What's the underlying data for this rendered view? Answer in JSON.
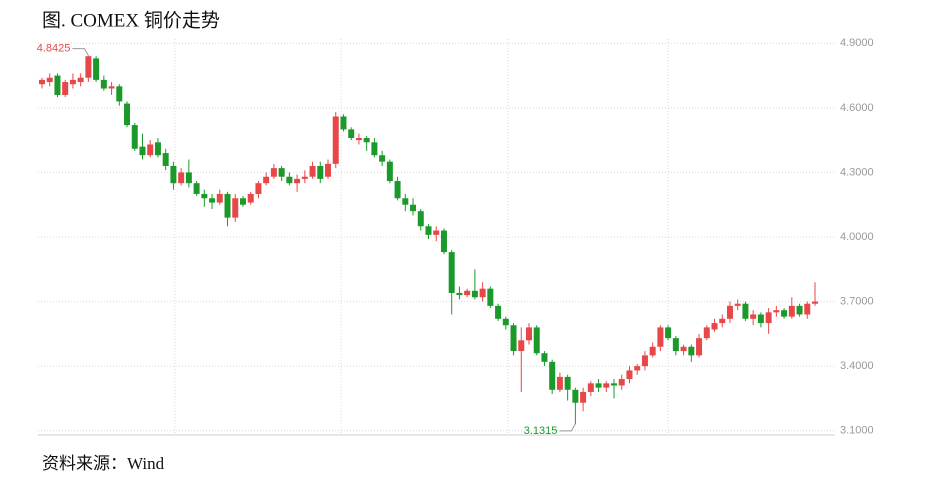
{
  "title": "图. COMEX 铜价走势",
  "source": "资料来源：Wind",
  "chart_data": {
    "type": "candlestick",
    "up_color": "#e8474a",
    "down_color": "#1b9a2b",
    "grid": true,
    "ylim": [
      3.08,
      4.92
    ],
    "yticks": [
      {
        "value": 3.1,
        "label": "3.1000"
      },
      {
        "value": 3.4,
        "label": "3.4000"
      },
      {
        "value": 3.7,
        "label": "3.7000"
      },
      {
        "value": 4.0,
        "label": "4.0000"
      },
      {
        "value": 4.3,
        "label": "4.3000"
      },
      {
        "value": 4.6,
        "label": "4.6000"
      },
      {
        "value": 4.9,
        "label": "4.9000"
      }
    ],
    "annotations": [
      {
        "text": "4.8425",
        "index": 6,
        "color": "#e8474a"
      },
      {
        "text": "3.1315",
        "index": 69,
        "color": "#1b9a2b"
      }
    ],
    "open": [
      4.71,
      4.72,
      4.75,
      4.66,
      4.71,
      4.72,
      4.74,
      4.83,
      4.73,
      4.69,
      4.7,
      4.62,
      4.52,
      4.42,
      4.38,
      4.44,
      4.39,
      4.33,
      4.25,
      4.3,
      4.25,
      4.2,
      4.18,
      4.16,
      4.2,
      4.09,
      4.18,
      4.16,
      4.2,
      4.25,
      4.28,
      4.32,
      4.28,
      4.25,
      4.27,
      4.28,
      4.33,
      4.28,
      4.34,
      4.56,
      4.5,
      4.45,
      4.46,
      4.44,
      4.38,
      4.35,
      4.26,
      4.18,
      4.15,
      4.12,
      4.05,
      4.01,
      4.03,
      3.93,
      3.74,
      3.73,
      3.75,
      3.72,
      3.76,
      3.68,
      3.62,
      3.59,
      3.47,
      3.52,
      3.58,
      3.46,
      3.42,
      3.29,
      3.35,
      3.29,
      3.23,
      3.28,
      3.32,
      3.3,
      3.32,
      3.31,
      3.34,
      3.38,
      3.4,
      3.45,
      3.49,
      3.58,
      3.53,
      3.47,
      3.49,
      3.45,
      3.53,
      3.57,
      3.6,
      3.62,
      3.68,
      3.69,
      3.62,
      3.64,
      3.6,
      3.65,
      3.66,
      3.63,
      3.68,
      3.64,
      3.69
    ],
    "high": [
      4.74,
      4.76,
      4.76,
      4.73,
      4.76,
      4.76,
      4.8425,
      4.84,
      4.75,
      4.72,
      4.71,
      4.63,
      4.53,
      4.48,
      4.45,
      4.46,
      4.41,
      4.35,
      4.32,
      4.36,
      4.26,
      4.22,
      4.2,
      4.22,
      4.21,
      4.2,
      4.19,
      4.21,
      4.26,
      4.3,
      4.34,
      4.33,
      4.3,
      4.29,
      4.31,
      4.35,
      4.35,
      4.36,
      4.58,
      4.57,
      4.51,
      4.48,
      4.47,
      4.46,
      4.4,
      4.36,
      4.28,
      4.2,
      4.18,
      4.13,
      4.06,
      4.05,
      4.04,
      3.94,
      3.77,
      3.76,
      3.85,
      3.79,
      3.77,
      3.69,
      3.63,
      3.6,
      3.58,
      3.6,
      3.59,
      3.47,
      3.43,
      3.37,
      3.36,
      3.3,
      3.3,
      3.33,
      3.34,
      3.33,
      3.34,
      3.36,
      3.4,
      3.41,
      3.47,
      3.51,
      3.59,
      3.59,
      3.54,
      3.5,
      3.5,
      3.55,
      3.59,
      3.62,
      3.64,
      3.7,
      3.71,
      3.7,
      3.66,
      3.65,
      3.67,
      3.68,
      3.67,
      3.72,
      3.69,
      3.7,
      3.79
    ],
    "low": [
      4.69,
      4.7,
      4.65,
      4.65,
      4.69,
      4.7,
      4.72,
      4.72,
      4.68,
      4.66,
      4.61,
      4.51,
      4.4,
      4.36,
      4.37,
      4.37,
      4.31,
      4.22,
      4.24,
      4.23,
      4.19,
      4.14,
      4.13,
      4.15,
      4.05,
      4.07,
      4.14,
      4.15,
      4.18,
      4.24,
      4.27,
      4.26,
      4.24,
      4.21,
      4.25,
      4.27,
      4.25,
      4.27,
      4.32,
      4.49,
      4.45,
      4.43,
      4.4,
      4.37,
      4.33,
      4.25,
      4.17,
      4.12,
      4.1,
      4.03,
      3.99,
      3.98,
      3.92,
      3.64,
      3.71,
      3.72,
      3.71,
      3.7,
      3.67,
      3.61,
      3.57,
      3.45,
      3.28,
      3.5,
      3.45,
      3.4,
      3.27,
      3.28,
      3.24,
      3.1315,
      3.19,
      3.26,
      3.28,
      3.28,
      3.25,
      3.29,
      3.32,
      3.36,
      3.38,
      3.44,
      3.47,
      3.52,
      3.45,
      3.45,
      3.42,
      3.44,
      3.52,
      3.56,
      3.58,
      3.6,
      3.66,
      3.61,
      3.59,
      3.58,
      3.55,
      3.63,
      3.62,
      3.62,
      3.63,
      3.62,
      3.68
    ],
    "close": [
      4.73,
      4.74,
      4.66,
      4.72,
      4.73,
      4.74,
      4.84,
      4.73,
      4.69,
      4.7,
      4.63,
      4.52,
      4.41,
      4.38,
      4.43,
      4.38,
      4.33,
      4.25,
      4.3,
      4.25,
      4.2,
      4.18,
      4.16,
      4.2,
      4.09,
      4.18,
      4.15,
      4.2,
      4.25,
      4.28,
      4.32,
      4.28,
      4.25,
      4.27,
      4.28,
      4.33,
      4.27,
      4.34,
      4.56,
      4.5,
      4.46,
      4.46,
      4.44,
      4.38,
      4.35,
      4.26,
      4.18,
      4.15,
      4.12,
      4.05,
      4.01,
      4.03,
      3.93,
      3.74,
      3.73,
      3.75,
      3.72,
      3.76,
      3.68,
      3.62,
      3.59,
      3.47,
      3.52,
      3.58,
      3.46,
      3.42,
      3.29,
      3.35,
      3.29,
      3.23,
      3.28,
      3.32,
      3.3,
      3.32,
      3.31,
      3.34,
      3.38,
      3.4,
      3.45,
      3.49,
      3.58,
      3.53,
      3.47,
      3.49,
      3.45,
      3.53,
      3.58,
      3.6,
      3.62,
      3.68,
      3.69,
      3.62,
      3.64,
      3.6,
      3.65,
      3.66,
      3.63,
      3.68,
      3.64,
      3.69,
      3.7
    ]
  }
}
